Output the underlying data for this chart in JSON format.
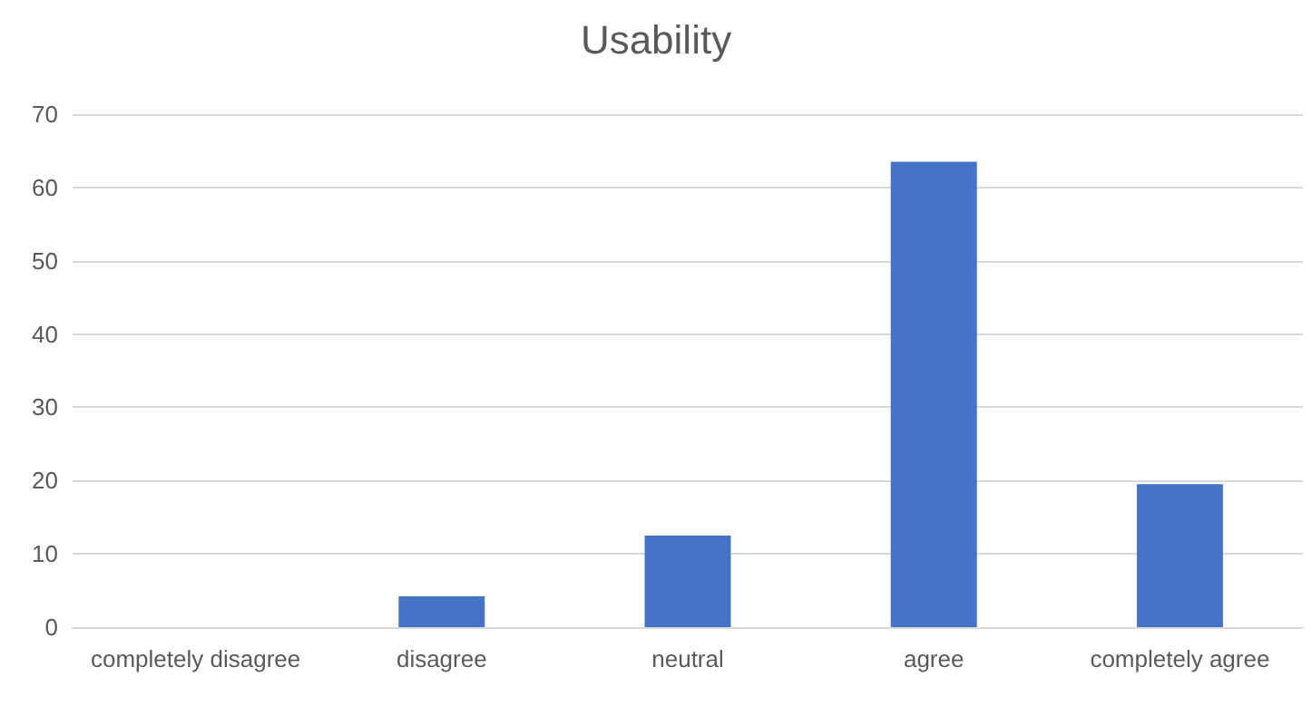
{
  "chart_data": {
    "type": "bar",
    "title": "Usability",
    "categories": [
      "completely disagree",
      "disagree",
      "neutral",
      "agree",
      "completely agree"
    ],
    "values": [
      0,
      4.2,
      12.5,
      63.5,
      19.5
    ],
    "color": "#4472c4",
    "ylim": [
      0,
      70
    ],
    "yticks": [
      0,
      10,
      20,
      30,
      40,
      50,
      60,
      70
    ],
    "grid": "y"
  }
}
